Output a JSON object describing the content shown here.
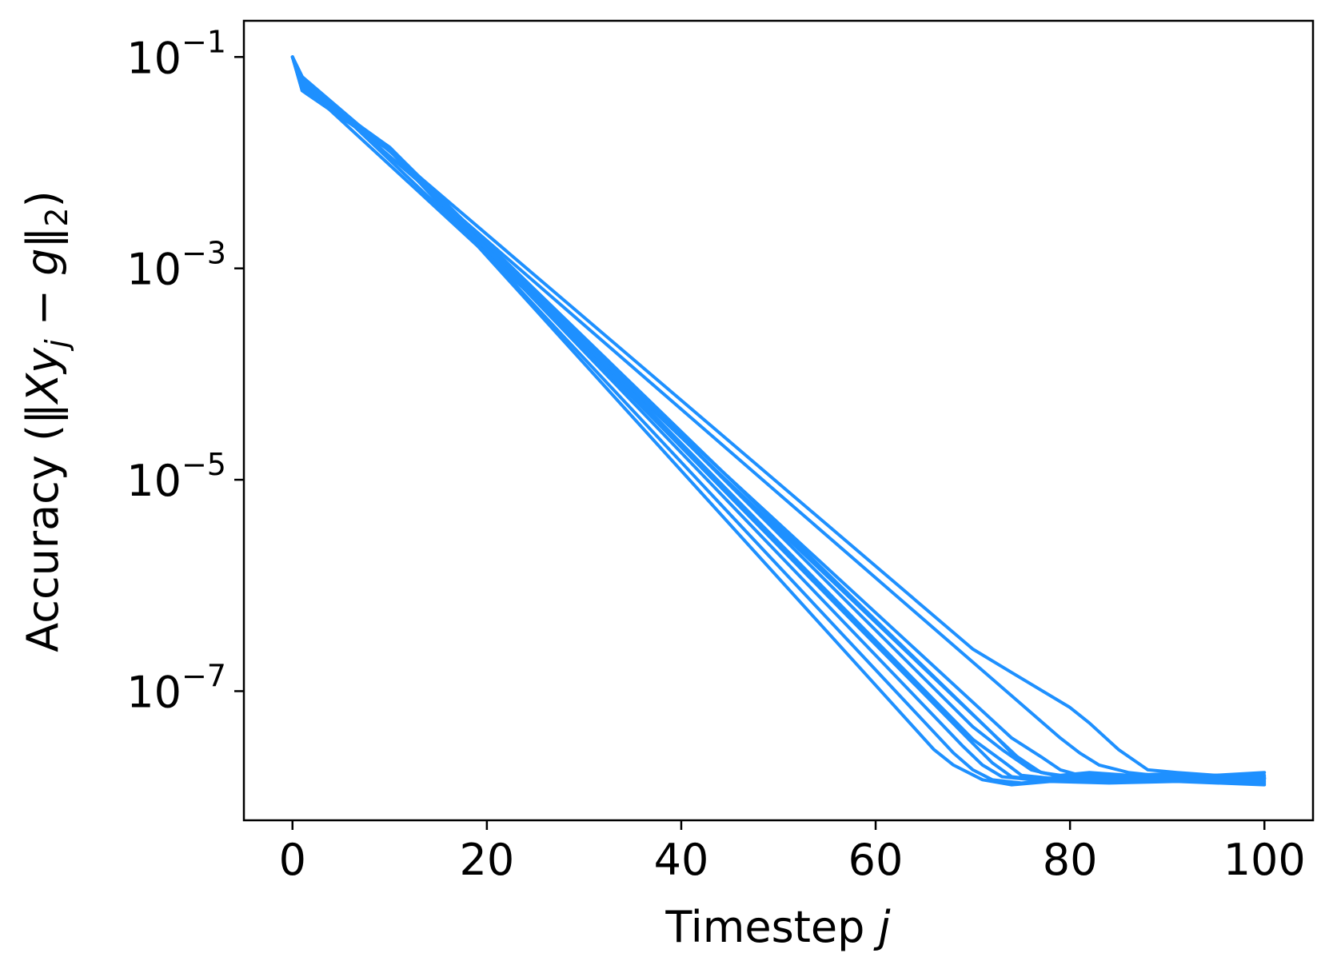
{
  "chart_data": {
    "type": "line",
    "title": "",
    "xlabel": "Timestep j",
    "ylabel": "Accuracy (‖Xy_j − g‖_2)",
    "x_scale": "linear",
    "y_scale": "log",
    "xlim": [
      -5,
      105
    ],
    "ylim": [
      6e-09,
      0.22
    ],
    "x_ticks": [
      0,
      20,
      40,
      60,
      80,
      100
    ],
    "x_tick_labels": [
      "0",
      "20",
      "40",
      "60",
      "80",
      "100"
    ],
    "y_ticks": [
      0.1,
      0.001,
      1e-05,
      1e-07
    ],
    "y_tick_labels": [
      {
        "base": "10",
        "exp": "−1"
      },
      {
        "base": "10",
        "exp": "−3"
      },
      {
        "base": "10",
        "exp": "−5"
      },
      {
        "base": "10",
        "exp": "−7"
      }
    ],
    "grid": false,
    "legend": "none",
    "color": "#1e90ff",
    "series": [
      {
        "values": [
          [
            0,
            0.1
          ],
          [
            1,
            0.065
          ],
          [
            72,
            4e-08
          ],
          [
            75,
            2.2e-08
          ],
          [
            77,
            1.7e-08
          ],
          [
            79,
            1.6e-08
          ],
          [
            82,
            1.7e-08
          ],
          [
            86,
            1.6e-08
          ],
          [
            90,
            1.65e-08
          ],
          [
            95,
            1.55e-08
          ],
          [
            100,
            1.6e-08
          ]
        ]
      },
      {
        "values": [
          [
            0,
            0.1
          ],
          [
            1,
            0.055
          ],
          [
            10,
            0.014
          ],
          [
            70,
            3.5e-08
          ],
          [
            73,
            2.2e-08
          ],
          [
            75,
            1.6e-08
          ],
          [
            78,
            1.5e-08
          ],
          [
            82,
            1.6e-08
          ],
          [
            88,
            1.5e-08
          ],
          [
            94,
            1.6e-08
          ],
          [
            100,
            1.5e-08
          ]
        ]
      },
      {
        "values": [
          [
            0,
            0.1
          ],
          [
            1,
            0.05
          ],
          [
            10,
            0.0135
          ],
          [
            69,
            3e-08
          ],
          [
            71,
            2e-08
          ],
          [
            73,
            1.55e-08
          ],
          [
            76,
            1.45e-08
          ],
          [
            80,
            1.55e-08
          ],
          [
            86,
            1.45e-08
          ],
          [
            93,
            1.55e-08
          ],
          [
            100,
            1.45e-08
          ]
        ]
      },
      {
        "values": [
          [
            0,
            0.1
          ],
          [
            1,
            0.048
          ],
          [
            10,
            0.013
          ],
          [
            68,
            2.6e-08
          ],
          [
            70,
            1.8e-08
          ],
          [
            72,
            1.45e-08
          ],
          [
            75,
            1.35e-08
          ],
          [
            79,
            1.45e-08
          ],
          [
            85,
            1.4e-08
          ],
          [
            92,
            1.45e-08
          ],
          [
            100,
            1.35e-08
          ]
        ]
      },
      {
        "values": [
          [
            0,
            0.1
          ],
          [
            1,
            0.05
          ],
          [
            10,
            0.0135
          ],
          [
            66,
            2.8e-08
          ],
          [
            68,
            2e-08
          ],
          [
            71,
            1.45e-08
          ],
          [
            74,
            1.3e-08
          ],
          [
            78,
            1.4e-08
          ],
          [
            84,
            1.35e-08
          ],
          [
            91,
            1.4e-08
          ],
          [
            100,
            1.3e-08
          ]
        ]
      },
      {
        "values": [
          [
            0,
            0.1
          ],
          [
            1,
            0.052
          ],
          [
            10,
            0.014
          ],
          [
            70,
            4.6e-08
          ],
          [
            73,
            2.8e-08
          ],
          [
            76,
            1.8e-08
          ],
          [
            79,
            1.55e-08
          ],
          [
            83,
            1.6e-08
          ],
          [
            89,
            1.5e-08
          ],
          [
            95,
            1.6e-08
          ],
          [
            100,
            1.5e-08
          ]
        ]
      },
      {
        "values": [
          [
            0,
            0.1
          ],
          [
            1,
            0.048
          ],
          [
            10,
            0.013
          ],
          [
            70,
            3.2e-08
          ],
          [
            72,
            2.1e-08
          ],
          [
            74,
            1.55e-08
          ],
          [
            77,
            1.45e-08
          ],
          [
            81,
            1.5e-08
          ],
          [
            87,
            1.45e-08
          ],
          [
            94,
            1.5e-08
          ],
          [
            100,
            1.4e-08
          ]
        ]
      },
      {
        "values": [
          [
            0,
            0.1
          ],
          [
            1,
            0.055
          ],
          [
            74,
            3.6e-08
          ],
          [
            77,
            2.4e-08
          ],
          [
            79,
            1.8e-08
          ],
          [
            81,
            1.6e-08
          ],
          [
            84,
            1.55e-08
          ],
          [
            88,
            1.6e-08
          ],
          [
            94,
            1.5e-08
          ],
          [
            100,
            1.55e-08
          ]
        ]
      },
      {
        "values": [
          [
            0,
            0.1
          ],
          [
            1,
            0.06
          ],
          [
            79,
            3.6e-08
          ],
          [
            81,
            2.6e-08
          ],
          [
            83,
            2e-08
          ],
          [
            86,
            1.7e-08
          ],
          [
            90,
            1.55e-08
          ],
          [
            95,
            1.6e-08
          ],
          [
            100,
            1.5e-08
          ]
        ]
      },
      {
        "values": [
          [
            0,
            0.1
          ],
          [
            1,
            0.065
          ],
          [
            70,
            2.5e-07
          ],
          [
            74,
            1.5e-07
          ],
          [
            80,
            7e-08
          ],
          [
            82,
            5e-08
          ],
          [
            85,
            2.8e-08
          ],
          [
            88,
            1.8e-08
          ],
          [
            91,
            1.7e-08
          ],
          [
            95,
            1.6e-08
          ],
          [
            100,
            1.7e-08
          ]
        ]
      },
      {
        "values": [
          [
            0,
            0.1
          ],
          [
            1,
            0.05
          ],
          [
            10,
            0.0135
          ],
          [
            72,
            4e-08
          ],
          [
            74,
            2.6e-08
          ],
          [
            77,
            1.7e-08
          ],
          [
            80,
            1.5e-08
          ],
          [
            85,
            1.55e-08
          ],
          [
            91,
            1.45e-08
          ],
          [
            100,
            1.5e-08
          ]
        ]
      }
    ]
  }
}
